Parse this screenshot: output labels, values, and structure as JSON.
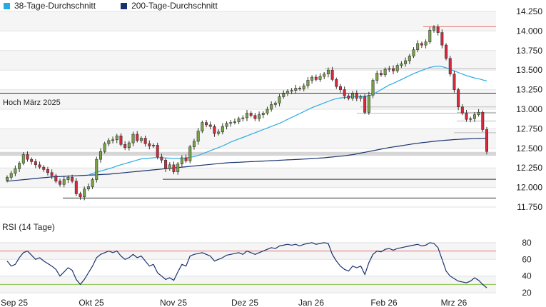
{
  "legend": {
    "ma38_label": "38-Tage-Durchschnitt",
    "ma200_label": "200-Tage-Durchschnitt"
  },
  "colors": {
    "ma38": "#29abe2",
    "ma200": "#1a3370",
    "up": "#78a445",
    "down": "#d9283c",
    "rsi_line": "#1a3370",
    "rsi_upper": "#e57373",
    "rsi_lower": "#8bc34a"
  },
  "chart_data": [
    {
      "type": "candlestick",
      "ylim": [
        11750,
        14250
      ],
      "yticks": [
        "14.250",
        "14.000",
        "13.750",
        "13.500",
        "13.250",
        "13.000",
        "12.750",
        "12.500",
        "12.250",
        "12.000",
        "11.750"
      ],
      "ytick_values": [
        14250,
        14000,
        13750,
        13500,
        13250,
        13000,
        12750,
        12500,
        12250,
        12000,
        11750
      ],
      "xticks": [
        "Sep 25",
        "Okt 25",
        "Nov 25",
        "Dez 25",
        "Jan 26",
        "Feb 26",
        "Mrz 26"
      ],
      "annotation": "Hoch März 2025",
      "reference_lines": [
        13205,
        12105,
        11865
      ],
      "close": [
        12130,
        12180,
        12240,
        12310,
        12420,
        12360,
        12330,
        12290,
        12260,
        12230,
        12190,
        12150,
        12080,
        12040,
        12100,
        12130,
        12080,
        11920,
        11880,
        11980,
        12010,
        12100,
        12360,
        12460,
        12560,
        12600,
        12610,
        12660,
        12550,
        12510,
        12570,
        12680,
        12600,
        12630,
        12560,
        12530,
        12540,
        12390,
        12350,
        12240,
        12290,
        12200,
        12300,
        12380,
        12340,
        12520,
        12590,
        12720,
        12830,
        12800,
        12780,
        12690,
        12710,
        12780,
        12820,
        12830,
        12840,
        12880,
        12890,
        12950,
        12920,
        12880,
        12930,
        12950,
        13000,
        13060,
        13080,
        13160,
        13200,
        13230,
        13240,
        13270,
        13260,
        13300,
        13370,
        13410,
        13380,
        13420,
        13450,
        13500,
        13380,
        13290,
        13250,
        13170,
        13140,
        13200,
        13140,
        13160,
        12960,
        13180,
        13370,
        13460,
        13440,
        13510,
        13520,
        13490,
        13560,
        13580,
        13620,
        13680,
        13760,
        13840,
        13820,
        13860,
        14010,
        14050,
        13980,
        13820,
        13650,
        13450,
        13250,
        13030,
        12950,
        12870,
        12880,
        12930,
        12960,
        12740,
        12460
      ],
      "ma38": [
        null,
        null,
        null,
        null,
        null,
        null,
        null,
        null,
        null,
        null,
        null,
        null,
        null,
        null,
        null,
        null,
        null,
        null,
        null,
        null,
        12160,
        12180,
        12195,
        12210,
        12225,
        12240,
        12255,
        12275,
        12290,
        12305,
        12320,
        12335,
        12350,
        12365,
        12370,
        12375,
        12380,
        12382,
        12380,
        12378,
        12375,
        12372,
        12370,
        12372,
        12378,
        12385,
        12395,
        12410,
        12430,
        12450,
        12470,
        12490,
        12510,
        12530,
        12555,
        12580,
        12600,
        12620,
        12640,
        12660,
        12680,
        12700,
        12720,
        12740,
        12760,
        12780,
        12800,
        12820,
        12845,
        12870,
        12895,
        12920,
        12945,
        12970,
        12995,
        13020,
        13040,
        13060,
        13080,
        13100,
        13120,
        13135,
        13145,
        13150,
        13155,
        13160,
        13162,
        13165,
        13165,
        13170,
        13190,
        13220,
        13250,
        13280,
        13310,
        13330,
        13355,
        13380,
        13405,
        13430,
        13455,
        13475,
        13495,
        13515,
        13535,
        13545,
        13550,
        13545,
        13530,
        13510,
        13490,
        13470,
        13450,
        13430,
        13415,
        13400,
        13390,
        13375,
        13360
      ],
      "ma200": [
        12080,
        12085,
        12090,
        12095,
        12100,
        12105,
        12110,
        12115,
        12120,
        12125,
        12130,
        12135,
        12138,
        12140,
        12142,
        12145,
        12148,
        12150,
        12152,
        12155,
        12158,
        12160,
        12162,
        12165,
        12168,
        12170,
        12175,
        12180,
        12185,
        12190,
        12195,
        12200,
        12205,
        12210,
        12215,
        12220,
        12225,
        12230,
        12235,
        12240,
        12245,
        12250,
        12255,
        12260,
        12265,
        12270,
        12275,
        12280,
        12285,
        12290,
        12295,
        12300,
        12305,
        12310,
        12315,
        12318,
        12320,
        12322,
        12325,
        12328,
        12330,
        12332,
        12335,
        12338,
        12340,
        12343,
        12345,
        12348,
        12350,
        12353,
        12355,
        12358,
        12360,
        12363,
        12366,
        12370,
        12373,
        12376,
        12380,
        12385,
        12390,
        12395,
        12400,
        12405,
        12412,
        12420,
        12430,
        12440,
        12450,
        12460,
        12470,
        12480,
        12490,
        12500,
        12510,
        12518,
        12526,
        12534,
        12542,
        12550,
        12558,
        12565,
        12572,
        12578,
        12584,
        12590,
        12595,
        12600,
        12604,
        12608,
        12612,
        12615,
        12618,
        12620,
        12622,
        12624,
        12626,
        12628,
        12630
      ]
    },
    {
      "type": "line",
      "title": "RSI (14 Tage)",
      "ylim": [
        15,
        85
      ],
      "yticks": [
        "80",
        "60",
        "40",
        "20"
      ],
      "ytick_values": [
        80,
        60,
        40,
        20
      ],
      "reference_lines": [
        70,
        30
      ],
      "values": [
        58,
        52,
        54,
        62,
        68,
        70,
        65,
        60,
        62,
        58,
        55,
        52,
        48,
        40,
        45,
        50,
        47,
        36,
        30,
        36,
        44,
        52,
        62,
        66,
        68,
        70,
        68,
        70,
        64,
        60,
        62,
        66,
        62,
        64,
        58,
        52,
        54,
        44,
        40,
        36,
        38,
        35,
        45,
        54,
        52,
        64,
        66,
        67,
        68,
        66,
        64,
        58,
        60,
        62,
        65,
        66,
        67,
        68,
        66,
        70,
        68,
        66,
        68,
        70,
        72,
        74,
        73,
        76,
        77,
        78,
        77,
        78,
        76,
        78,
        79,
        80,
        78,
        79,
        80,
        79,
        66,
        58,
        52,
        48,
        46,
        52,
        50,
        52,
        42,
        56,
        66,
        70,
        69,
        72,
        73,
        71,
        73,
        74,
        75,
        76,
        77,
        78,
        76,
        77,
        80,
        79,
        74,
        60,
        46,
        40,
        37,
        34,
        33,
        32,
        34,
        38,
        35,
        30,
        26
      ]
    }
  ]
}
